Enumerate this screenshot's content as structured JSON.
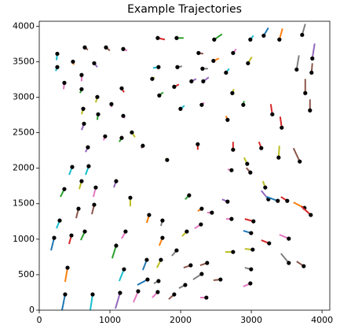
{
  "chart_data": {
    "type": "trajectory",
    "title": "Example Trajectories",
    "end_marker_color": "#000000",
    "xlim": [
      0,
      4110
    ],
    "ylim": [
      0,
      4070
    ],
    "xticks": [
      0,
      1000,
      2000,
      3000,
      4000
    ],
    "yticks": [
      0,
      500,
      1000,
      1500,
      2000,
      2500,
      3000,
      3500,
      4000
    ],
    "series": [
      {
        "color": "#17becf",
        "x": [
          244,
          255
        ],
        "y": [
          3523,
          3612
        ]
      },
      {
        "color": "#17becf",
        "x": [
          233,
          255
        ],
        "y": [
          3368,
          3424
        ]
      },
      {
        "color": "#e377c2",
        "x": [
          344,
          355
        ],
        "y": [
          3113,
          3202
        ]
      },
      {
        "color": "#ff7f0e",
        "x": [
          488,
          477
        ],
        "y": [
          3457,
          3501
        ]
      },
      {
        "color": "#e377c2",
        "x": [
          599,
          599
        ],
        "y": [
          3224,
          3313
        ]
      },
      {
        "color": "#2ca02c",
        "x": [
          577,
          599
        ],
        "y": [
          3058,
          3113
        ]
      },
      {
        "color": "#8c564b",
        "x": [
          688,
          644
        ],
        "y": [
          3667,
          3701
        ]
      },
      {
        "color": "#9467bd",
        "x": [
          821,
          777
        ],
        "y": [
          3424,
          3479
        ]
      },
      {
        "color": "#8c564b",
        "x": [
          999,
          944
        ],
        "y": [
          3656,
          3701
        ]
      },
      {
        "color": "#bcbd22",
        "x": [
          799,
          821
        ],
        "y": [
          2925,
          3003
        ]
      },
      {
        "color": "#bcbd22",
        "x": [
          599,
          622
        ],
        "y": [
          2759,
          2836
        ]
      },
      {
        "color": "#9467bd",
        "x": [
          599,
          633
        ],
        "y": [
          2537,
          2626
        ]
      },
      {
        "color": "#2ca02c",
        "x": [
          821,
          833
        ],
        "y": [
          2681,
          2759
        ]
      },
      {
        "color": "#e377c2",
        "x": [
          1021,
          1021
        ],
        "y": [
          2859,
          2903
        ]
      },
      {
        "color": "#d62728",
        "x": [
          1199,
          1166
        ],
        "y": [
          3069,
          3125
        ]
      },
      {
        "color": "#e377c2",
        "x": [
          1243,
          1188
        ],
        "y": [
          3656,
          3679
        ]
      },
      {
        "color": "#e377c2",
        "x": [
          1210,
          1188
        ],
        "y": [
          2704,
          2737
        ]
      },
      {
        "color": "#d62728",
        "x": [
          1776,
          1676
        ],
        "y": [
          3812,
          3834
        ]
      },
      {
        "color": "#2ca02c",
        "x": [
          2042,
          1943
        ],
        "y": [
          3834,
          3834
        ]
      },
      {
        "color": "#17becf",
        "x": [
          1610,
          1687
        ],
        "y": [
          3412,
          3424
        ]
      },
      {
        "color": "#7f7f7f",
        "x": [
          2020,
          1954
        ],
        "y": [
          3435,
          3424
        ]
      },
      {
        "color": "#bcbd22",
        "x": [
          1632,
          1598
        ],
        "y": [
          3280,
          3258
        ]
      },
      {
        "color": "#d62728",
        "x": [
          1976,
          1909
        ],
        "y": [
          3180,
          3147
        ]
      },
      {
        "color": "#9467bd",
        "x": [
          2220,
          2153
        ],
        "y": [
          3258,
          3224
        ]
      },
      {
        "color": "#8c564b",
        "x": [
          2320,
          2253
        ],
        "y": [
          3612,
          3623
        ]
      },
      {
        "color": "#2ca02c",
        "x": [
          2586,
          2475
        ],
        "y": [
          3889,
          3812
        ]
      },
      {
        "color": "#ff7f0e",
        "x": [
          2542,
          2464
        ],
        "y": [
          3546,
          3512
        ]
      },
      {
        "color": "#7f7f7f",
        "x": [
          2387,
          2309
        ],
        "y": [
          3402,
          3402
        ]
      },
      {
        "color": "#9467bd",
        "x": [
          2398,
          2320
        ],
        "y": [
          3280,
          3224
        ]
      },
      {
        "color": "#2ca02c",
        "x": [
          1754,
          1698
        ],
        "y": [
          3069,
          3025
        ]
      },
      {
        "color": "#17becf",
        "x": [
          2054,
          1998
        ],
        "y": [
          2881,
          2836
        ]
      },
      {
        "color": "#e377c2",
        "x": [
          2331,
          2298
        ],
        "y": [
          2925,
          2892
        ]
      },
      {
        "color": "#17becf",
        "x": [
          2686,
          2642
        ],
        "y": [
          3402,
          3346
        ]
      },
      {
        "color": "#e377c2",
        "x": [
          2786,
          2742
        ],
        "y": [
          3679,
          3623
        ]
      },
      {
        "color": "#17becf",
        "x": [
          3030,
          2986
        ],
        "y": [
          3867,
          3812
        ]
      },
      {
        "color": "#bcbd22",
        "x": [
          3008,
          2953
        ],
        "y": [
          3568,
          3479
        ]
      },
      {
        "color": "#bcbd22",
        "x": [
          2753,
          2731
        ],
        "y": [
          3113,
          3058
        ]
      },
      {
        "color": "#2ca02c",
        "x": [
          2897,
          2886
        ],
        "y": [
          2947,
          2892
        ]
      },
      {
        "color": "#1f77b4",
        "x": [
          3241,
          3175
        ],
        "y": [
          3978,
          3867
        ]
      },
      {
        "color": "#ff7f0e",
        "x": [
          3441,
          3397
        ],
        "y": [
          3967,
          3812
        ]
      },
      {
        "color": "#7f7f7f",
        "x": [
          3763,
          3719
        ],
        "y": [
          4033,
          3878
        ]
      },
      {
        "color": "#9467bd",
        "x": [
          3896,
          3863
        ],
        "y": [
          3756,
          3546
        ]
      },
      {
        "color": "#7f7f7f",
        "x": [
          3674,
          3641
        ],
        "y": [
          3590,
          3390
        ]
      },
      {
        "color": "#8c564b",
        "x": [
          3863,
          3852
        ],
        "y": [
          3479,
          3346
        ]
      },
      {
        "color": "#8c564b",
        "x": [
          3763,
          3763
        ],
        "y": [
          3258,
          3058
        ]
      },
      {
        "color": "#8c564b",
        "x": [
          3830,
          3830
        ],
        "y": [
          2969,
          2814
        ]
      },
      {
        "color": "#d62728",
        "x": [
          3275,
          3297
        ],
        "y": [
          2903,
          2759
        ]
      },
      {
        "color": "#d62728",
        "x": [
          3408,
          3430
        ],
        "y": [
          2726,
          2571
        ]
      },
      {
        "color": "#ff7f0e",
        "x": [
          2642,
          2664
        ],
        "y": [
          2737,
          2681
        ]
      },
      {
        "color": "#9467bd",
        "x": [
          655,
          688
        ],
        "y": [
          2227,
          2294
        ]
      },
      {
        "color": "#17becf",
        "x": [
          422,
          466
        ],
        "y": [
          1906,
          2017
        ]
      },
      {
        "color": "#2ca02c",
        "x": [
          300,
          355
        ],
        "y": [
          1596,
          1706
        ]
      },
      {
        "color": "#17becf",
        "x": [
          244,
          289
        ],
        "y": [
          1152,
          1263
        ]
      },
      {
        "color": "#1f77b4",
        "x": [
          167,
          211
        ],
        "y": [
          842,
          1019
        ]
      },
      {
        "color": "#d62728",
        "x": [
          422,
          455
        ],
        "y": [
          931,
          1053
        ]
      },
      {
        "color": "#2ca02c",
        "x": [
          588,
          644
        ],
        "y": [
          986,
          1108
        ]
      },
      {
        "color": "#ff7f0e",
        "x": [
          366,
          400
        ],
        "y": [
          399,
          598
        ]
      },
      {
        "color": "#1f77b4",
        "x": [
          322,
          366
        ],
        "y": [
          0,
          222
        ]
      },
      {
        "color": "#17becf",
        "x": [
          655,
          699
        ],
        "y": [
          1906,
          2028
        ]
      },
      {
        "color": "#bcbd22",
        "x": [
          566,
          599
        ],
        "y": [
          1706,
          1817
        ]
      },
      {
        "color": "#8c564b",
        "x": [
          522,
          555
        ],
        "y": [
          1296,
          1429
        ]
      },
      {
        "color": "#e377c2",
        "x": [
          766,
          799
        ],
        "y": [
          1596,
          1728
        ]
      },
      {
        "color": "#8c564b",
        "x": [
          744,
          777
        ],
        "y": [
          1352,
          1485
        ]
      },
      {
        "color": "#e377c2",
        "x": [
          910,
          932
        ],
        "y": [
          2393,
          2449
        ]
      },
      {
        "color": "#2ca02c",
        "x": [
          1132,
          1166
        ],
        "y": [
          2371,
          2427
        ]
      },
      {
        "color": "#9467bd",
        "x": [
          1055,
          1088
        ],
        "y": [
          1728,
          1817
        ]
      },
      {
        "color": "#bcbd22",
        "x": [
          1288,
          1288
        ],
        "y": [
          1463,
          1584
        ]
      },
      {
        "color": "#e377c2",
        "x": [
          1166,
          1221
        ],
        "y": [
          1008,
          1108
        ]
      },
      {
        "color": "#2ca02c",
        "x": [
          1032,
          1088
        ],
        "y": [
          731,
          909
        ]
      },
      {
        "color": "#17becf",
        "x": [
          1132,
          1199
        ],
        "y": [
          410,
          576
        ]
      },
      {
        "color": "#17becf",
        "x": [
          722,
          755
        ],
        "y": [
          0,
          222
        ]
      },
      {
        "color": "#9467bd",
        "x": [
          1077,
          1143
        ],
        "y": [
          22,
          244
        ]
      },
      {
        "color": "#e377c2",
        "x": [
          1332,
          1399
        ],
        "y": [
          111,
          266
        ]
      },
      {
        "color": "#bcbd22",
        "x": [
          1354,
          1310
        ],
        "y": [
          2438,
          2504
        ]
      },
      {
        "color": "#8c564b",
        "x": [
          1443,
          1465
        ],
        "y": [
          2283,
          2316
        ]
      },
      {
        "color": "#bcbd22",
        "x": [
          1787,
          1809
        ],
        "y": [
          2138,
          2116
        ]
      },
      {
        "color": "#d62728",
        "x": [
          2242,
          2242
        ],
        "y": [
          2260,
          2338
        ]
      },
      {
        "color": "#ff7f0e",
        "x": [
          1521,
          1554
        ],
        "y": [
          1230,
          1341
        ]
      },
      {
        "color": "#7f7f7f",
        "x": [
          1721,
          1743
        ],
        "y": [
          1186,
          1263
        ]
      },
      {
        "color": "#ff7f0e",
        "x": [
          1698,
          1743
        ],
        "y": [
          909,
          1019
        ]
      },
      {
        "color": "#1f77b4",
        "x": [
          1465,
          1521
        ],
        "y": [
          565,
          709
        ]
      },
      {
        "color": "#bcbd22",
        "x": [
          1665,
          1721
        ],
        "y": [
          598,
          709
        ]
      },
      {
        "color": "#7f7f7f",
        "x": [
          1876,
          1943
        ],
        "y": [
          765,
          842
        ]
      },
      {
        "color": "#bcbd22",
        "x": [
          2020,
          2087
        ],
        "y": [
          1042,
          1108
        ]
      },
      {
        "color": "#e377c2",
        "x": [
          2198,
          2287
        ],
        "y": [
          1152,
          1208
        ]
      },
      {
        "color": "#2ca02c",
        "x": [
          2065,
          2120
        ],
        "y": [
          1562,
          1618
        ]
      },
      {
        "color": "#e377c2",
        "x": [
          2375,
          2442
        ],
        "y": [
          1374,
          1374
        ]
      },
      {
        "color": "#ff7f0e",
        "x": [
          2242,
          2298
        ],
        "y": [
          1396,
          1429
        ]
      },
      {
        "color": "#9467bd",
        "x": [
          2586,
          2664
        ],
        "y": [
          1562,
          1529
        ]
      },
      {
        "color": "#e377c2",
        "x": [
          2664,
          2720
        ],
        "y": [
          1983,
          1972
        ]
      },
      {
        "color": "#d62728",
        "x": [
          2742,
          2742
        ],
        "y": [
          2371,
          2260
        ]
      },
      {
        "color": "#8c564b",
        "x": [
          2930,
          2986
        ],
        "y": [
          2005,
          1939
        ]
      },
      {
        "color": "#bcbd22",
        "x": [
          2897,
          2942
        ],
        "y": [
          2150,
          2061
        ]
      },
      {
        "color": "#d62728",
        "x": [
          3108,
          3141
        ],
        "y": [
          2371,
          2283
        ]
      },
      {
        "color": "#bcbd22",
        "x": [
          3397,
          3386
        ],
        "y": [
          2316,
          2150
        ]
      },
      {
        "color": "#8c564b",
        "x": [
          3596,
          3685
        ],
        "y": [
          2283,
          2094
        ]
      },
      {
        "color": "#bcbd22",
        "x": [
          3164,
          3197
        ],
        "y": [
          1817,
          1728
        ]
      },
      {
        "color": "#9467bd",
        "x": [
          3141,
          3241
        ],
        "y": [
          1684,
          1562
        ]
      },
      {
        "color": "#1f77b4",
        "x": [
          3219,
          3374
        ],
        "y": [
          1596,
          1540
        ]
      },
      {
        "color": "#d62728",
        "x": [
          3419,
          3508
        ],
        "y": [
          1596,
          1540
        ]
      },
      {
        "color": "#ff7f0e",
        "x": [
          3596,
          3752
        ],
        "y": [
          1518,
          1440
        ]
      },
      {
        "color": "#d62728",
        "x": [
          3707,
          3841
        ],
        "y": [
          1463,
          1341
        ]
      },
      {
        "color": "#d62728",
        "x": [
          2908,
          3030
        ],
        "y": [
          1285,
          1252
        ]
      },
      {
        "color": "#e377c2",
        "x": [
          2642,
          2720
        ],
        "y": [
          1285,
          1285
        ]
      },
      {
        "color": "#1f77b4",
        "x": [
          2886,
          2997
        ],
        "y": [
          1119,
          1086
        ]
      },
      {
        "color": "#d62728",
        "x": [
          3141,
          3252
        ],
        "y": [
          986,
          942
        ]
      },
      {
        "color": "#e377c2",
        "x": [
          3397,
          3530
        ],
        "y": [
          1064,
          1008
        ]
      },
      {
        "color": "#bcbd22",
        "x": [
          2631,
          2742
        ],
        "y": [
          820,
          820
        ]
      },
      {
        "color": "#bcbd22",
        "x": [
          2908,
          3019
        ],
        "y": [
          864,
          853
        ]
      },
      {
        "color": "#7f7f7f",
        "x": [
          3419,
          3530
        ],
        "y": [
          798,
          665
        ]
      },
      {
        "color": "#8c564b",
        "x": [
          3641,
          3741
        ],
        "y": [
          687,
          620
        ]
      },
      {
        "color": "#7f7f7f",
        "x": [
          2908,
          2997
        ],
        "y": [
          598,
          576
        ]
      },
      {
        "color": "#e377c2",
        "x": [
          2886,
          2986
        ],
        "y": [
          332,
          377
        ]
      },
      {
        "color": "#e377c2",
        "x": [
          2276,
          2364
        ],
        "y": [
          177,
          177
        ]
      },
      {
        "color": "#8c564b",
        "x": [
          2464,
          2564
        ],
        "y": [
          421,
          432
        ]
      },
      {
        "color": "#7f7f7f",
        "x": [
          2176,
          2298
        ],
        "y": [
          432,
          510
        ]
      },
      {
        "color": "#8c564b",
        "x": [
          2042,
          2142
        ],
        "y": [
          598,
          632
        ]
      },
      {
        "color": "#8c564b",
        "x": [
          2276,
          2375
        ],
        "y": [
          632,
          665
        ]
      },
      {
        "color": "#7f7f7f",
        "x": [
          1976,
          2065
        ],
        "y": [
          310,
          355
        ]
      },
      {
        "color": "#7f7f7f",
        "x": [
          1621,
          1687
        ],
        "y": [
          377,
          410
        ]
      },
      {
        "color": "#8c564b",
        "x": [
          1832,
          1909
        ],
        "y": [
          155,
          222
        ]
      },
      {
        "color": "#e377c2",
        "x": [
          1598,
          1676
        ],
        "y": [
          177,
          255
        ]
      },
      {
        "color": "#1f77b4",
        "x": [
          1388,
          1532
        ],
        "y": [
          355,
          432
        ]
      }
    ]
  }
}
